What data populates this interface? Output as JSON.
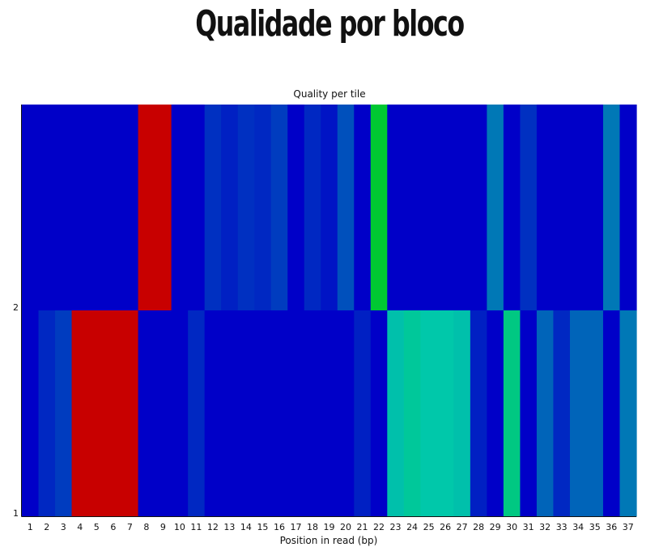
{
  "page": {
    "title": "Qualidade por bloco"
  },
  "colors": {
    "low": "#0000c8",
    "mid": "#00c8aa",
    "high": "#c80000",
    "green": "#00c832"
  },
  "chart_data": {
    "type": "heatmap",
    "title": "Quality per tile",
    "xlabel": "Position in read (bp)",
    "ylabel": "",
    "x": [
      1,
      2,
      3,
      4,
      5,
      6,
      7,
      8,
      9,
      10,
      11,
      12,
      13,
      14,
      15,
      16,
      17,
      18,
      19,
      20,
      21,
      22,
      23,
      24,
      25,
      26,
      27,
      28,
      29,
      30,
      31,
      32,
      33,
      34,
      35,
      36,
      37
    ],
    "y": [
      "2",
      "1"
    ],
    "values": [
      [
        0.0,
        0.0,
        0.0,
        0.0,
        0.0,
        0.0,
        0.0,
        1.0,
        1.0,
        0.0,
        0.0,
        0.12,
        0.08,
        0.12,
        0.1,
        0.15,
        0.0,
        0.1,
        0.05,
        0.2,
        0.0,
        0.7,
        0.0,
        0.0,
        0.0,
        0.0,
        0.0,
        0.0,
        0.3,
        0.0,
        0.12,
        0.0,
        0.0,
        0.0,
        0.0,
        0.3,
        0.0
      ],
      [
        0.0,
        0.1,
        0.15,
        1.0,
        1.0,
        1.0,
        1.0,
        0.0,
        0.0,
        0.0,
        0.1,
        0.0,
        0.0,
        0.0,
        0.0,
        0.0,
        0.0,
        0.0,
        0.0,
        0.0,
        0.08,
        0.0,
        0.48,
        0.52,
        0.5,
        0.5,
        0.48,
        0.08,
        0.0,
        0.55,
        0.0,
        0.25,
        0.1,
        0.25,
        0.25,
        0.0,
        0.3
      ]
    ],
    "value_range": [
      0,
      1
    ],
    "grid": false,
    "legend": "none"
  }
}
